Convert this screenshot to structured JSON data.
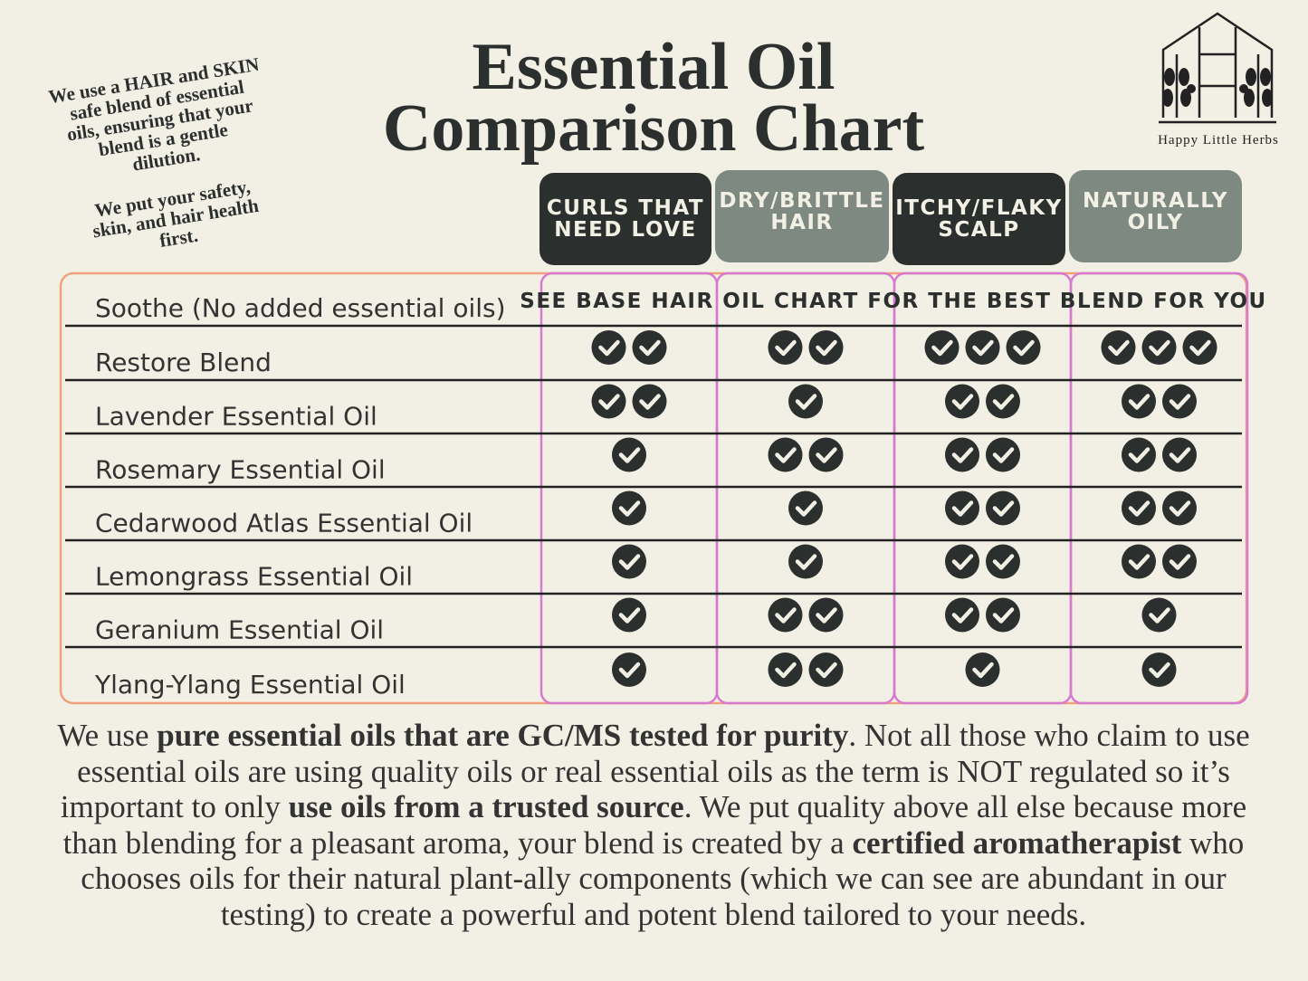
{
  "title": [
    "Essential Oil",
    "Comparison Chart"
  ],
  "side_note": [
    [
      "We use a HAIR and SKIN",
      "safe blend of essential",
      "oils, ensuring that your",
      "blend is a gentle",
      "dilution."
    ],
    [
      "We put your safety,",
      "skin, and hair health",
      "first."
    ]
  ],
  "logo": {
    "text": "Happy Little Herbs"
  },
  "table": {
    "columns": [
      {
        "label": [
          "CURLS THAT",
          "NEED LOVE"
        ],
        "color": "#2b2f2e"
      },
      {
        "label": [
          "DRY/BRITTLE",
          "HAIR"
        ],
        "color": "#7e8981"
      },
      {
        "label": [
          "ITCHY/FLAKY",
          "SCALP"
        ],
        "color": "#2b2f2e"
      },
      {
        "label": [
          "NATURALLY",
          "OILY"
        ],
        "color": "#7e8981"
      }
    ],
    "first_row": {
      "name": "Soothe (No added essential oils)",
      "note": "SEE BASE HAIR OIL CHART FOR THE BEST BLEND FOR YOU"
    },
    "rows": [
      {
        "name": "Restore Blend",
        "checks": [
          2,
          2,
          3,
          3
        ]
      },
      {
        "name": "Lavender Essential Oil",
        "checks": [
          2,
          1,
          2,
          2
        ]
      },
      {
        "name": "Rosemary Essential Oil",
        "checks": [
          1,
          2,
          2,
          2
        ]
      },
      {
        "name": "Cedarwood Atlas Essential Oil",
        "checks": [
          1,
          1,
          2,
          2
        ]
      },
      {
        "name": "Lemongrass Essential Oil",
        "checks": [
          1,
          1,
          2,
          2
        ]
      },
      {
        "name": "Geranium Essential Oil",
        "checks": [
          1,
          2,
          2,
          1
        ]
      },
      {
        "name": "Ylang-Ylang Essential Oil",
        "checks": [
          1,
          2,
          1,
          1
        ]
      }
    ]
  },
  "paragraph": [
    {
      "text": "We use ",
      "bold": false
    },
    {
      "text": "pure essential oils that are GC/MS tested for purity",
      "bold": true
    },
    {
      "text": ". Not all those who claim to use essential oils are using quality oils or real essential oils as the term is NOT regulated so it’s important to only ",
      "bold": false
    },
    {
      "text": "use oils from a trusted source",
      "bold": true
    },
    {
      "text": ". We put quality above all else because more than blending for a pleasant aroma, your blend is created by a ",
      "bold": false
    },
    {
      "text": "certified aromatherapist",
      "bold": true
    },
    {
      "text": " who chooses oils for their natural plant-ally components (which we can see are abundant in our testing) to create a powerful and potent blend tailored to your needs.",
      "bold": false
    }
  ]
}
